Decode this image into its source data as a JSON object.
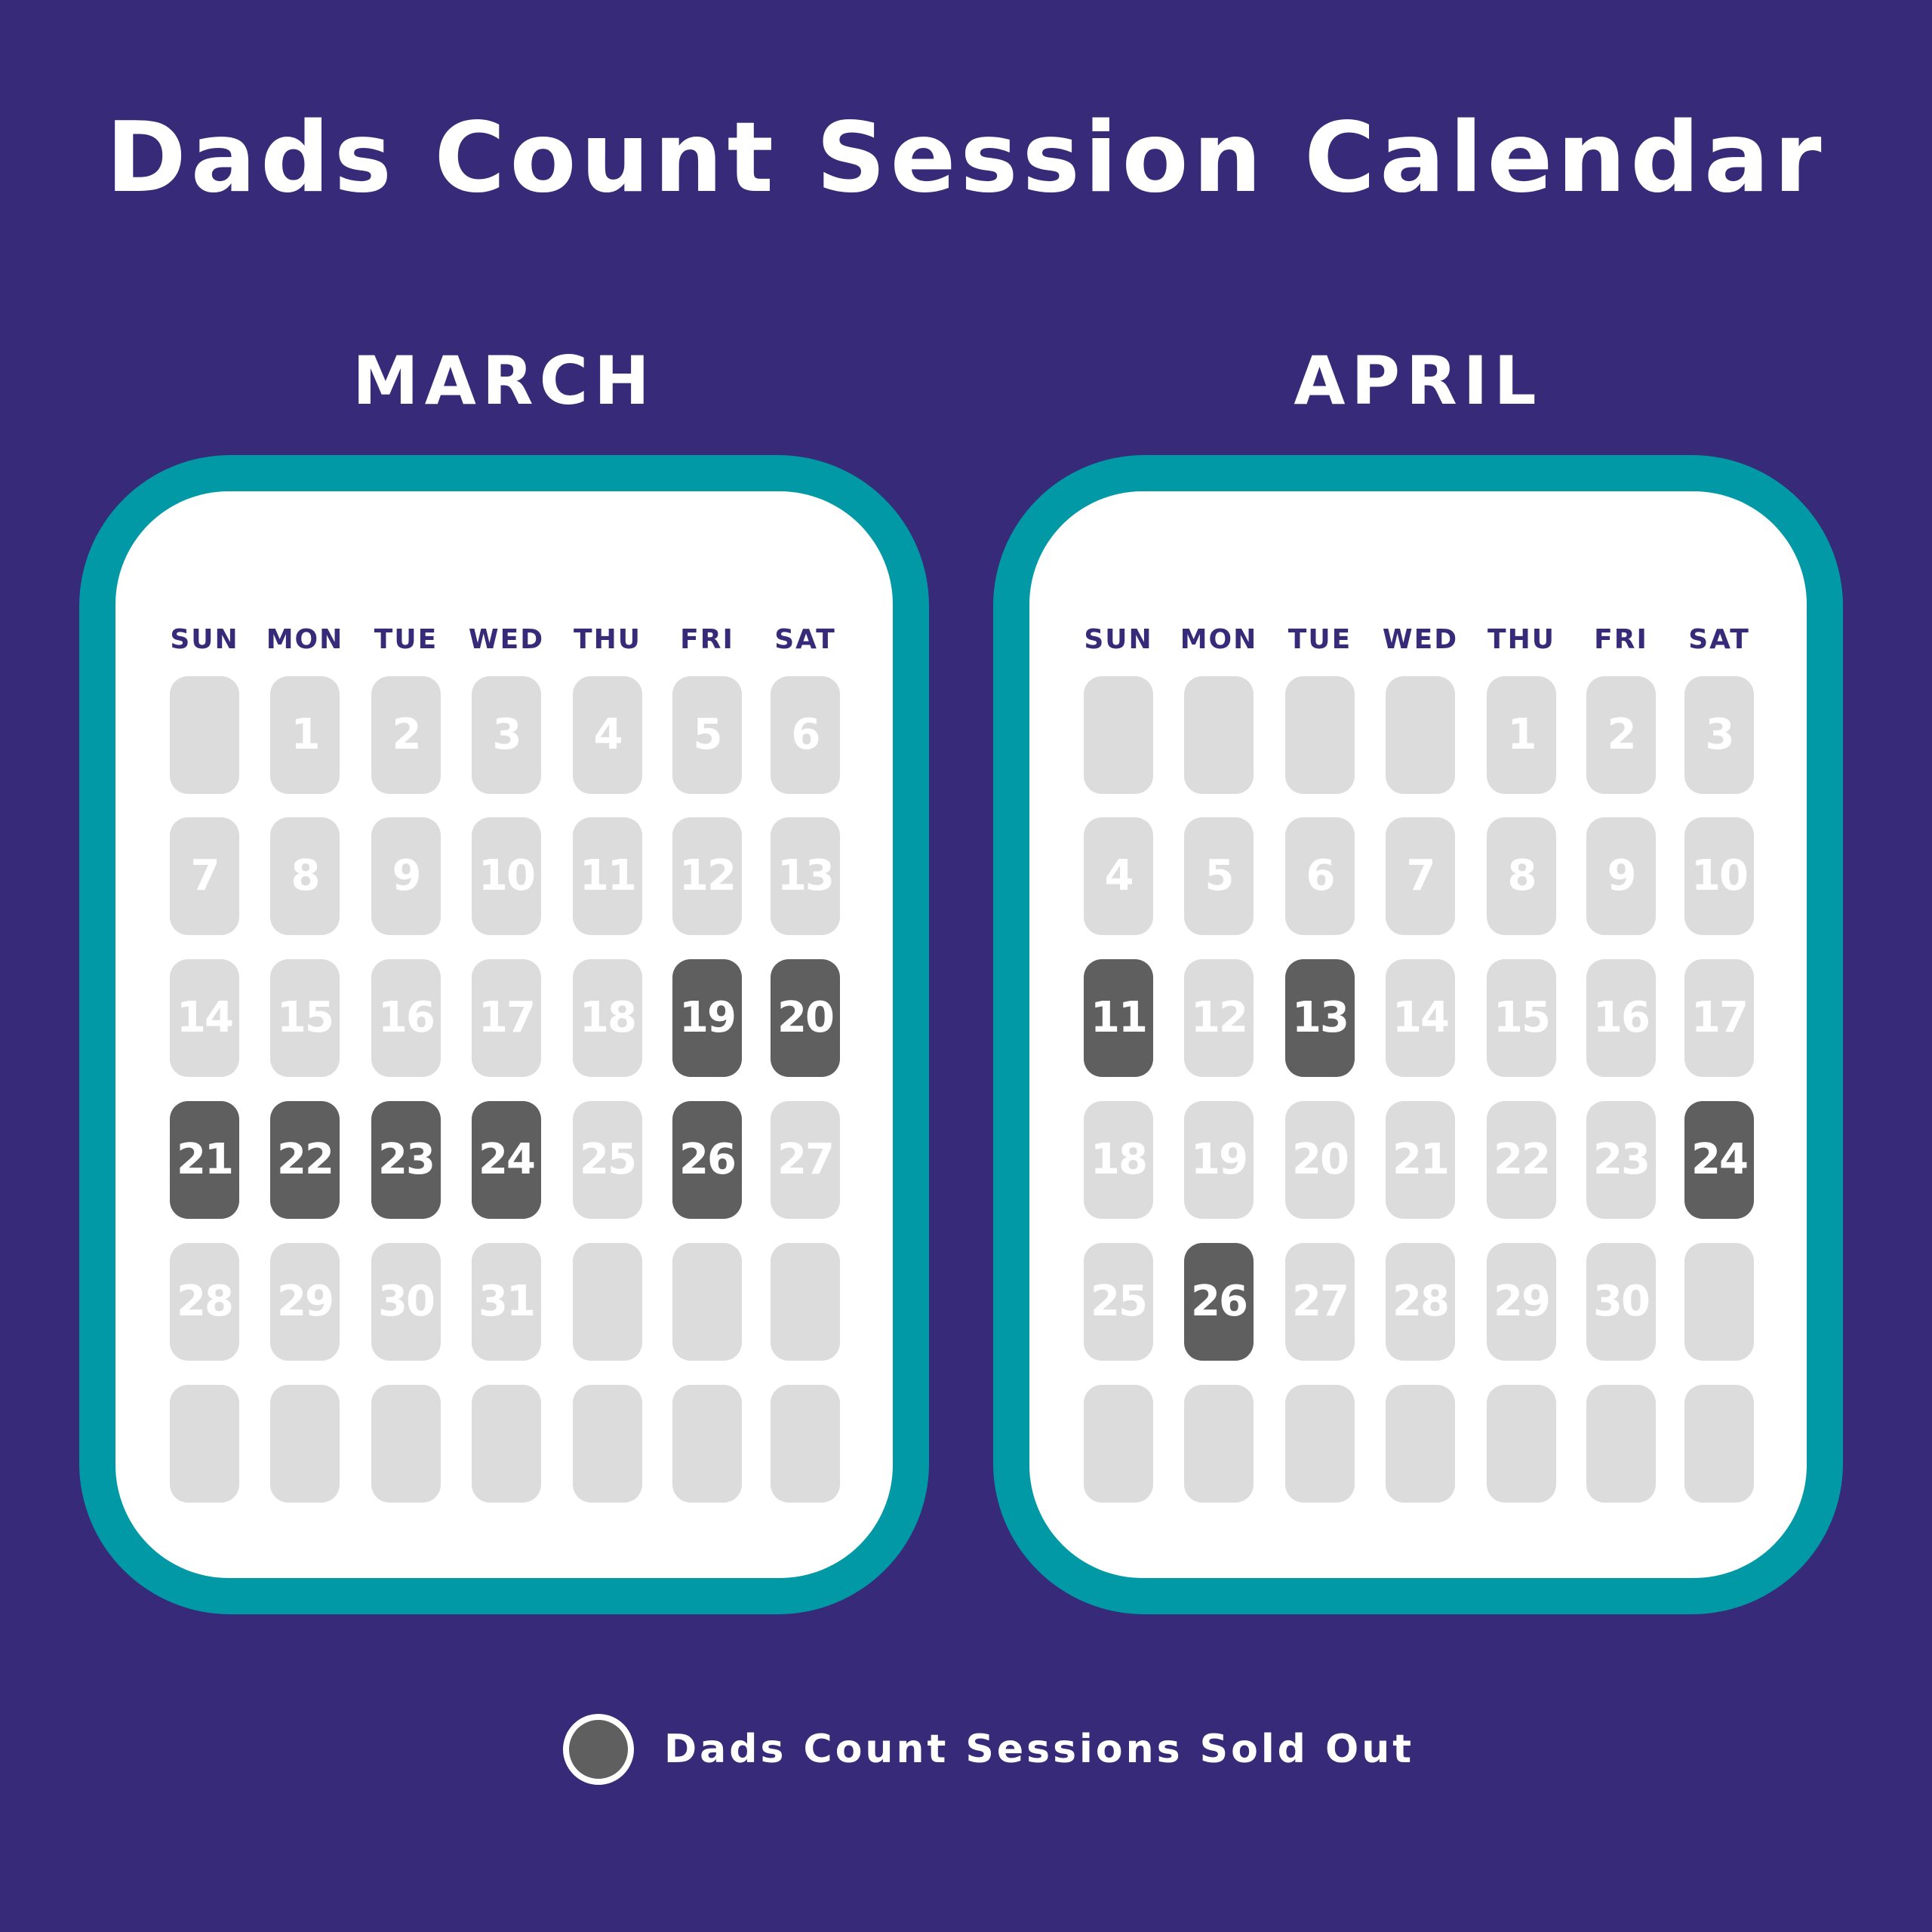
{
  "title": "Dads Count Session Calendar",
  "colors": {
    "background": "#372a78",
    "frame": "#0299a7",
    "card": "#ffffff",
    "day_available": "#dcdcdd",
    "day_sold_out": "#5f5f60",
    "day_number": "#ffffff",
    "weekday_label": "#372a78"
  },
  "weekdays": [
    "SUN",
    "MON",
    "TUE",
    "WED",
    "THU",
    "FRI",
    "SAT"
  ],
  "months": [
    {
      "name": "MARCH",
      "first_weekday": 1,
      "days_in_month": 31,
      "sold_out_days": [
        19,
        20,
        21,
        22,
        23,
        24,
        26
      ]
    },
    {
      "name": "APRIL",
      "first_weekday": 4,
      "days_in_month": 30,
      "sold_out_days": [
        11,
        13,
        24,
        26
      ]
    }
  ],
  "legend": {
    "label": "Dads Count Sessions Sold Out",
    "icon": "circle-swatch"
  }
}
